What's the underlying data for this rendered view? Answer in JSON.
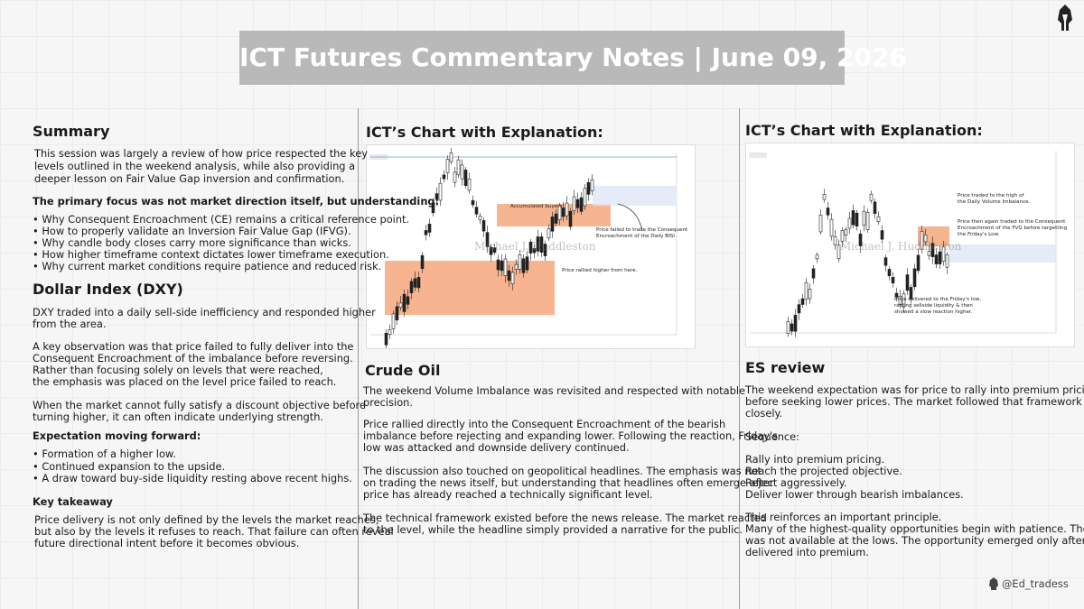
{
  "header": {
    "title": "ICT Futures Commentary Notes | June 09, 2026"
  },
  "summary": {
    "heading": "Summary",
    "intro": [
      "This session was largely a review of how price respected the key",
      "levels outlined in the weekend analysis, while also providing a",
      "deeper lesson on Fair Value Gap inversion and confirmation."
    ],
    "focus_label": "The primary focus was not market direction itself, but understanding:",
    "bullets": [
      "• Why Consequent Encroachment (CE) remains a critical reference point.",
      "• How to properly validate an Inversion Fair Value Gap (IFVG).",
      "• Why candle body closes carry more significance than wicks.",
      "• How higher timeframe context dictates lower timeframe execution.",
      "• Why current market conditions require patience and reduced risk."
    ]
  },
  "dxy": {
    "heading": "Dollar Index (DXY)",
    "paragraphs": [
      [
        "DXY traded into a daily sell-side inefficiency and responded higher",
        "from the area."
      ],
      [
        "A key observation was that price failed to fully deliver into the",
        "Consequent Encroachment of the imbalance before reversing.",
        "Rather than focusing solely on levels that were reached,",
        "the emphasis was placed on the level price failed to reach."
      ],
      [
        "When the market cannot fully satisfy a discount objective before",
        "turning higher, it can often indicate underlying strength."
      ]
    ],
    "expectation_label": "Expectation moving forward:",
    "bullets": [
      "• Formation of a higher low.",
      "• Continued expansion to the upside.",
      "• A draw toward buy-side liquidity resting above recent highs."
    ],
    "takeaway_label": "Key takeaway",
    "takeaway": [
      "Price delivery is not only defined by the levels the market reaches,",
      "but also by the levels it refuses to reach. That failure can often reveal",
      "future directional intent before it becomes obvious."
    ]
  },
  "crude_chart": {
    "heading": "ICT’s Chart with Explanation:",
    "watermark": "Michael J. Huddleston",
    "annotations": [
      [
        "Accumulated buyers."
      ],
      [
        "Price failed to trade the Consequent",
        "Encroachment of the Daily BISI."
      ],
      [
        "Price rallied higher from here."
      ]
    ]
  },
  "crude": {
    "heading": "Crude Oil",
    "paragraphs": [
      [
        "The weekend Volume Imbalance was revisited and respected with notable",
        "precision."
      ],
      [
        "Price rallied directly into the Consequent Encroachment of the bearish",
        "imbalance before rejecting and expanding lower. Following the reaction, Friday's",
        "low was attacked and downside delivery continued."
      ],
      [
        "The discussion also touched on geopolitical headlines. The emphasis was not",
        "on trading the news itself, but understanding that headlines often emerge after",
        "price has already reached a technically significant level."
      ],
      [
        "The technical framework existed before the news release. The market reacted",
        "to the level, while the headline simply provided a narrative for the public."
      ]
    ]
  },
  "es_chart": {
    "heading": "ICT’s Chart with Explanation:",
    "watermark": "Michael J. Huddleston",
    "annotations": [
      [
        "Price traded to the high of",
        "the Daily Volume Imbalance."
      ],
      [
        "Price then again traded to the Consequent",
        "Encroachment of the FVG before targetting",
        "the Friday's Low."
      ],
      [
        "Price delivered to the Friday's low,",
        "raiding sellside liquidity & then",
        "showed a slow reaction higher."
      ]
    ]
  },
  "es": {
    "heading": "ES review",
    "paragraphs": [
      [
        "The weekend expectation was for price to rally into premium pricing",
        "before seeking lower prices. The market followed that framework",
        "closely."
      ],
      [
        "Sequence:"
      ],
      [
        "Rally into premium pricing.",
        "Reach the projected objective.",
        "Reject aggressively.",
        "Deliver lower through bearish imbalances."
      ],
      [
        "This reinforces an important principle.",
        "Many of the highest-quality opportunities begin with patience. The short",
        "was not available at the lows. The opportunity emerged only after price",
        "delivered into premium."
      ]
    ]
  },
  "footer": {
    "handle": "@Ed_tradess"
  }
}
